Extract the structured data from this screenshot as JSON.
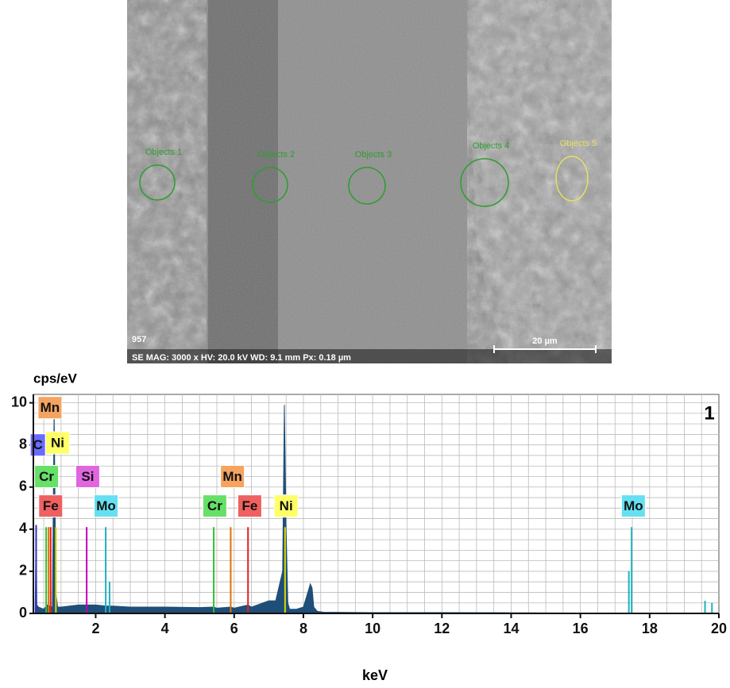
{
  "image": {
    "objects": [
      {
        "label": "Objects 1",
        "color": "#2e9e2e"
      },
      {
        "label": "Objects 2",
        "color": "#2e9e2e"
      },
      {
        "label": "Objects 3",
        "color": "#2e9e2e"
      },
      {
        "label": "Objects 4",
        "color": "#2e9e2e"
      },
      {
        "label": "Objects 5",
        "color": "#e8e060"
      }
    ],
    "id_text": "957",
    "info_text": "SE MAG: 3000 x HV: 20.0 kV WD: 9.1 mm Px: 0.18 µm",
    "scale_text": "20 µm"
  },
  "chart_data": {
    "type": "spectrum",
    "y_label": "cps/eV",
    "x_label": "keV",
    "panel_label": "1",
    "xlim": [
      0.2,
      20
    ],
    "ylim": [
      0,
      10.4
    ],
    "xticks": [
      2,
      4,
      6,
      8,
      10,
      12,
      14,
      16,
      18,
      20
    ],
    "yticks": [
      0,
      2,
      4,
      6,
      8,
      10
    ],
    "grid": true,
    "series": [
      {
        "color": "#1f4e79",
        "x": [
          0.25,
          0.28,
          0.3,
          0.35,
          0.5,
          0.6,
          0.75,
          0.8,
          0.85,
          0.9,
          0.95,
          1.0,
          1.5,
          2.0,
          2.3,
          2.5,
          3,
          4,
          5,
          5.4,
          5.5,
          5.9,
          6.0,
          6.4,
          6.5,
          7.0,
          7.2,
          7.4,
          7.45,
          7.5,
          7.55,
          7.6,
          7.8,
          8.0,
          8.2,
          8.25,
          8.3,
          8.4,
          8.6,
          9,
          10,
          12,
          14,
          16,
          17.4,
          17.5,
          18,
          19,
          19.6,
          19.7,
          20
        ],
        "values": [
          0.1,
          4.2,
          0.4,
          0.3,
          0.2,
          0.4,
          0.3,
          9.8,
          1.0,
          0.3,
          0.3,
          0.3,
          0.4,
          0.4,
          0.35,
          0.35,
          0.3,
          0.3,
          0.28,
          0.3,
          0.25,
          0.3,
          0.25,
          0.4,
          0.3,
          0.6,
          0.6,
          2.0,
          9.9,
          4.0,
          0.5,
          0.2,
          0.2,
          0.3,
          1.4,
          1.2,
          0.3,
          0.1,
          0.05,
          0.05,
          0.04,
          0.04,
          0.03,
          0.02,
          0.02,
          0.02,
          0.02,
          0.02,
          0.02,
          0.02,
          0.02
        ]
      }
    ],
    "peaks": [
      {
        "energy": 0.28,
        "height": 4.2,
        "color": "#3030d0"
      },
      {
        "energy": 0.57,
        "height": 4.1,
        "color": "#30c030"
      },
      {
        "energy": 0.64,
        "height": 4.1,
        "color": "#e07000"
      },
      {
        "energy": 0.7,
        "height": 4.1,
        "color": "#e02020"
      },
      {
        "energy": 0.85,
        "height": 4.1,
        "color": "#d8d800"
      },
      {
        "energy": 1.74,
        "height": 4.1,
        "color": "#c000c0"
      },
      {
        "energy": 2.29,
        "height": 4.1,
        "color": "#20b0c0"
      },
      {
        "energy": 2.4,
        "height": 1.5,
        "color": "#20b0c0"
      },
      {
        "energy": 5.41,
        "height": 4.1,
        "color": "#30c030"
      },
      {
        "energy": 5.9,
        "height": 4.1,
        "color": "#e07000"
      },
      {
        "energy": 6.4,
        "height": 4.1,
        "color": "#e02020"
      },
      {
        "energy": 7.47,
        "height": 4.1,
        "color": "#d8d800"
      },
      {
        "energy": 17.4,
        "height": 2.0,
        "color": "#20b0c0"
      },
      {
        "energy": 17.48,
        "height": 4.1,
        "color": "#20b0c0"
      },
      {
        "energy": 19.6,
        "height": 0.6,
        "color": "#20b0c0"
      },
      {
        "energy": 19.8,
        "height": 0.5,
        "color": "#20b0c0"
      }
    ],
    "labels": [
      {
        "text": "Mn",
        "energy": 0.68,
        "level": 9.77,
        "color": "#f4a460"
      },
      {
        "text": "C",
        "energy": 0.33,
        "level": 8.0,
        "color": "#6a6aff"
      },
      {
        "text": "Ni",
        "energy": 0.9,
        "level": 8.1,
        "color": "#ffff66"
      },
      {
        "text": "Cr",
        "energy": 0.58,
        "level": 6.5,
        "color": "#66e066"
      },
      {
        "text": "Si",
        "energy": 1.77,
        "level": 6.5,
        "color": "#e066e0"
      },
      {
        "text": "Fe",
        "energy": 0.7,
        "level": 5.1,
        "color": "#f06060"
      },
      {
        "text": "Mo",
        "energy": 2.3,
        "level": 5.1,
        "color": "#66e0f0"
      },
      {
        "text": "Mn",
        "energy": 5.95,
        "level": 6.5,
        "color": "#f4a460"
      },
      {
        "text": "Cr",
        "energy": 5.44,
        "level": 5.1,
        "color": "#66e066"
      },
      {
        "text": "Fe",
        "energy": 6.45,
        "level": 5.1,
        "color": "#f06060"
      },
      {
        "text": "Ni",
        "energy": 7.5,
        "level": 5.1,
        "color": "#ffff66"
      },
      {
        "text": "Mo",
        "energy": 17.53,
        "level": 5.1,
        "color": "#66e0f0"
      }
    ]
  }
}
